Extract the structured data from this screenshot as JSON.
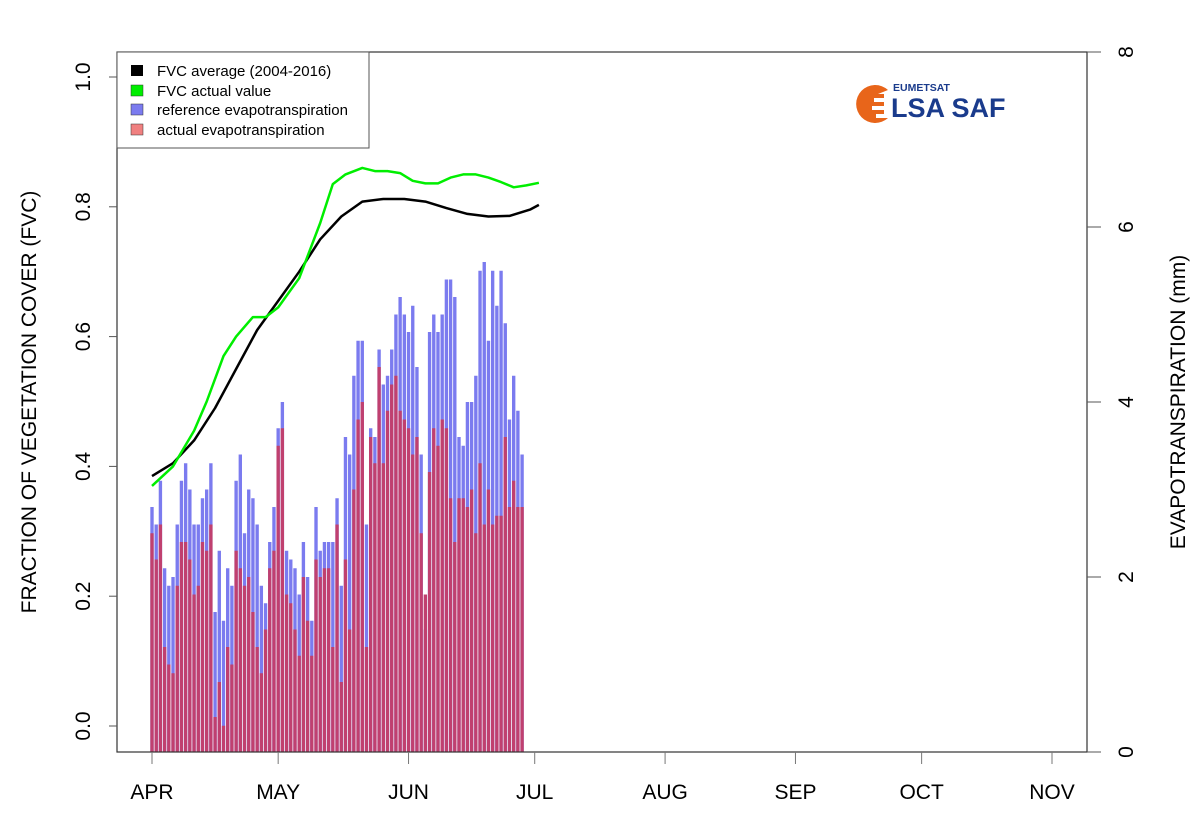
{
  "chart_data": {
    "type": "bar",
    "title": "",
    "ylabel": "FRACTION OF VEGETATION COVER (FVC)",
    "y2label": "EVAPOTRANSPIRATION (mm)",
    "xlabel": "",
    "ylim": [
      0,
      1.0
    ],
    "y2lim": [
      0,
      8
    ],
    "yticks": [
      "0.0",
      "0.2",
      "0.4",
      "0.6",
      "0.8",
      "1.0"
    ],
    "y2ticks": [
      "0",
      "2",
      "4",
      "6",
      "8"
    ],
    "x_axis": {
      "unit": "day_of_year_offset_from_APR_1",
      "range_days": [
        -8,
        240
      ],
      "ticks": [
        {
          "label": "APR",
          "day": 0
        },
        {
          "label": "MAY",
          "day": 30
        },
        {
          "label": "JUN",
          "day": 61
        },
        {
          "label": "JUL",
          "day": 91
        },
        {
          "label": "AUG",
          "day": 122
        },
        {
          "label": "SEP",
          "day": 153
        },
        {
          "label": "OCT",
          "day": 183
        },
        {
          "label": "NOV",
          "day": 214
        }
      ]
    },
    "legend": {
      "position": "top-left",
      "entries": [
        {
          "label": "FVC average (2004-2016)",
          "color": "#000000"
        },
        {
          "label": "FVC actual value",
          "color": "#00ee00"
        },
        {
          "label": "reference evapotranspiration",
          "color": "#7b7bef"
        },
        {
          "label": "actual evapotranspiration",
          "color": "#f08080"
        }
      ]
    },
    "series": [
      {
        "name": "reference evapotranspiration",
        "axis": "right",
        "type": "bar",
        "color": "#7b7bef",
        "start_day": 0,
        "values": [
          2.8,
          2.6,
          3.1,
          2.1,
          1.9,
          2.0,
          2.6,
          3.1,
          3.3,
          3.0,
          2.6,
          2.6,
          2.9,
          3.0,
          3.3,
          1.6,
          2.3,
          1.5,
          2.1,
          1.9,
          3.1,
          3.4,
          2.5,
          3.0,
          2.9,
          2.6,
          1.9,
          1.7,
          2.4,
          2.8,
          3.7,
          4.0,
          2.3,
          2.2,
          2.1,
          1.8,
          2.4,
          2.0,
          1.5,
          2.8,
          2.3,
          2.4,
          2.4,
          2.4,
          2.9,
          1.9,
          3.6,
          3.4,
          4.3,
          4.7,
          4.7,
          2.6,
          3.7,
          3.6,
          4.6,
          4.2,
          4.3,
          4.6,
          5.0,
          5.2,
          5.0,
          4.8,
          5.1,
          4.4,
          3.4,
          1.4,
          4.8,
          5.0,
          4.8,
          5.0,
          5.4,
          5.4,
          5.2,
          3.6,
          3.5,
          4.0,
          4.0,
          4.3,
          5.5,
          5.6,
          4.7,
          5.5,
          5.1,
          5.5,
          4.9,
          3.8,
          4.3,
          3.9,
          3.4
        ]
      },
      {
        "name": "actual evapotranspiration",
        "axis": "right",
        "type": "bar",
        "color": "#c0406f",
        "start_day": 0,
        "values": [
          2.5,
          2.2,
          2.6,
          1.2,
          1.0,
          0.9,
          1.9,
          2.4,
          2.4,
          2.2,
          1.8,
          1.9,
          2.4,
          2.3,
          2.6,
          0.4,
          0.8,
          0.3,
          1.2,
          1.0,
          2.3,
          2.1,
          1.9,
          2.0,
          1.6,
          1.2,
          0.9,
          1.4,
          2.1,
          2.3,
          3.5,
          3.7,
          1.8,
          1.7,
          1.4,
          1.1,
          2.0,
          1.5,
          1.1,
          2.2,
          2.0,
          2.1,
          2.1,
          1.2,
          2.6,
          0.8,
          2.2,
          1.4,
          3.0,
          3.8,
          4.0,
          1.2,
          3.6,
          3.3,
          4.4,
          3.3,
          3.9,
          4.2,
          4.3,
          3.9,
          3.8,
          3.7,
          3.4,
          3.6,
          2.5,
          1.8,
          3.2,
          3.7,
          3.5,
          3.8,
          3.7,
          2.9,
          2.4,
          2.9,
          2.9,
          2.8,
          3.0,
          2.5,
          3.3,
          2.6,
          3.0,
          2.6,
          2.7,
          2.7,
          3.6,
          2.8,
          3.1,
          2.8,
          2.8
        ]
      },
      {
        "name": "FVC average (2004-2016)",
        "axis": "left",
        "type": "line",
        "color": "#000000",
        "x_days": [
          0,
          5,
          10,
          15,
          20,
          25,
          30,
          35,
          40,
          45,
          50,
          55,
          60,
          65,
          70,
          75,
          80,
          85,
          90,
          92
        ],
        "values": [
          0.385,
          0.405,
          0.44,
          0.49,
          0.55,
          0.61,
          0.655,
          0.7,
          0.75,
          0.785,
          0.808,
          0.812,
          0.812,
          0.808,
          0.798,
          0.789,
          0.785,
          0.786,
          0.796,
          0.803
        ]
      },
      {
        "name": "FVC actual value",
        "axis": "left",
        "type": "line",
        "color": "#00ee00",
        "x_days": [
          0,
          5,
          10,
          13,
          17,
          20,
          24,
          27,
          30,
          35,
          40,
          43,
          46,
          50,
          53,
          56,
          59,
          62,
          65,
          68,
          71,
          74,
          77,
          80,
          83,
          86,
          89,
          92
        ],
        "values": [
          0.37,
          0.4,
          0.455,
          0.5,
          0.57,
          0.6,
          0.63,
          0.63,
          0.645,
          0.69,
          0.775,
          0.835,
          0.85,
          0.86,
          0.855,
          0.855,
          0.852,
          0.84,
          0.836,
          0.836,
          0.845,
          0.85,
          0.85,
          0.845,
          0.838,
          0.83,
          0.833,
          0.837
        ]
      }
    ]
  },
  "logo": {
    "top_text": "EUMETSAT",
    "main_text": "LSA SAF",
    "color_orange": "#e8651a",
    "color_blue": "#1a3b8c"
  }
}
